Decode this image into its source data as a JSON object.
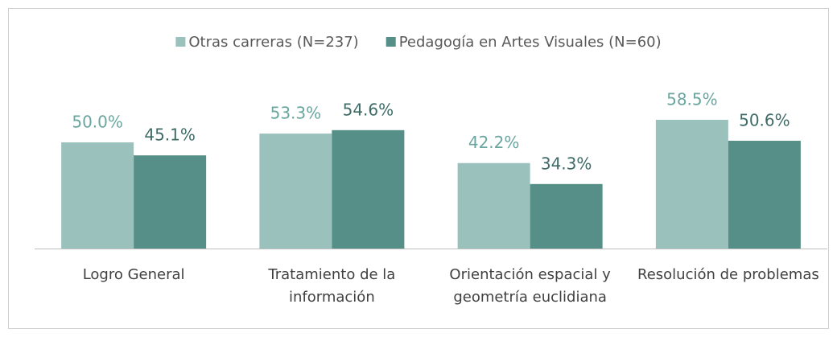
{
  "chart_data": {
    "type": "bar",
    "categories": [
      "Logro General",
      "Tratamiento de la información",
      "Orientación espacial y geometría euclidiana",
      "Resolución de problemas"
    ],
    "series": [
      {
        "name": "Otras carreras (N=237)",
        "color": "#9bc1bc",
        "values": [
          50.0,
          53.3,
          42.2,
          58.5
        ],
        "value_labels": [
          "50.0%",
          "53.3%",
          "42.2%",
          "58.5%"
        ]
      },
      {
        "name": "Pedagogía en Artes Visuales (N=60)",
        "color": "#568f88",
        "values": [
          45.1,
          54.6,
          34.3,
          50.6
        ],
        "value_labels": [
          "45.1%",
          "54.6%",
          "34.3%",
          "50.6%"
        ]
      }
    ],
    "ylim": [
      10,
      70
    ],
    "legend": "top"
  }
}
